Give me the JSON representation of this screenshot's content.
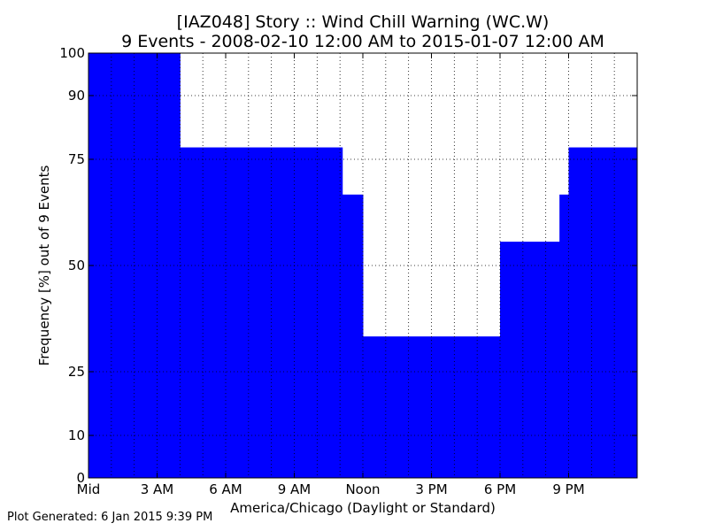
{
  "chart_data": {
    "type": "bar",
    "title": "[IAZ048] Story :: Wind Chill Warning (WC.W)",
    "subtitle": "9 Events - 2008-02-10 12:00 AM to 2015-01-07 12:00 AM",
    "xlabel": "America/Chicago (Daylight or Standard)",
    "ylabel": "Frequency [%] out of 9 Events",
    "xlim": [
      0,
      24
    ],
    "ylim": [
      0,
      100
    ],
    "x_ticks": [
      {
        "value": 0,
        "label": "Mid"
      },
      {
        "value": 3,
        "label": "3 AM"
      },
      {
        "value": 6,
        "label": "6 AM"
      },
      {
        "value": 9,
        "label": "9 AM"
      },
      {
        "value": 12,
        "label": "Noon"
      },
      {
        "value": 15,
        "label": "3 PM"
      },
      {
        "value": 18,
        "label": "6 PM"
      },
      {
        "value": 21,
        "label": "9 PM"
      }
    ],
    "y_ticks": [
      0,
      10,
      25,
      50,
      75,
      90,
      100
    ],
    "grid": true,
    "bar_color": "#0000ff",
    "steps": [
      {
        "start": 0,
        "end": 4,
        "value": 100
      },
      {
        "start": 4,
        "end": 11.1,
        "value": 77.8
      },
      {
        "start": 11.1,
        "end": 12,
        "value": 66.7
      },
      {
        "start": 12,
        "end": 18,
        "value": 33.3
      },
      {
        "start": 18,
        "end": 20.6,
        "value": 55.6
      },
      {
        "start": 20.6,
        "end": 21,
        "value": 66.7
      },
      {
        "start": 21,
        "end": 24,
        "value": 77.8
      }
    ]
  },
  "footer": {
    "generated": "Plot Generated: 6 Jan 2015 9:39 PM"
  }
}
